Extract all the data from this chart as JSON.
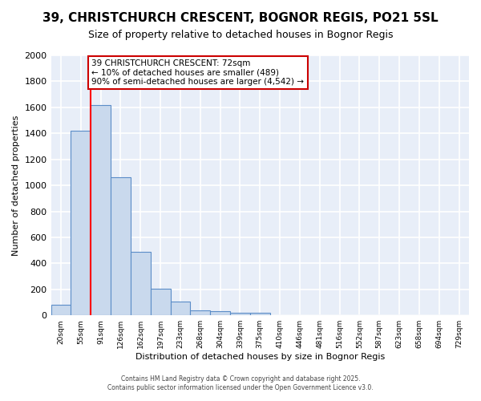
{
  "title_line1": "39, CHRISTCHURCH CRESCENT, BOGNOR REGIS, PO21 5SL",
  "title_line2": "Size of property relative to detached houses in Bognor Regis",
  "xlabel": "Distribution of detached houses by size in Bognor Regis",
  "ylabel": "Number of detached properties",
  "categories": [
    "20sqm",
    "55sqm",
    "91sqm",
    "126sqm",
    "162sqm",
    "197sqm",
    "233sqm",
    "268sqm",
    "304sqm",
    "339sqm",
    "375sqm",
    "410sqm",
    "446sqm",
    "481sqm",
    "516sqm",
    "552sqm",
    "587sqm",
    "623sqm",
    "658sqm",
    "694sqm",
    "729sqm"
  ],
  "values": [
    80,
    1420,
    1620,
    1060,
    490,
    205,
    105,
    40,
    30,
    20,
    20,
    0,
    0,
    0,
    0,
    0,
    0,
    0,
    0,
    0,
    0
  ],
  "bar_color": "#c9d9ed",
  "bar_edge_color": "#5b8dc8",
  "red_line_x": 1.5,
  "annotation_text": "39 CHRISTCHURCH CRESCENT: 72sqm\n← 10% of detached houses are smaller (489)\n90% of semi-detached houses are larger (4,542) →",
  "annotation_box_facecolor": "#ffffff",
  "annotation_box_edgecolor": "#cc0000",
  "footer_line1": "Contains HM Land Registry data © Crown copyright and database right 2025.",
  "footer_line2": "Contains public sector information licensed under the Open Government Licence v3.0.",
  "ylim": [
    0,
    2000
  ],
  "yticks": [
    0,
    200,
    400,
    600,
    800,
    1000,
    1200,
    1400,
    1600,
    1800,
    2000
  ],
  "plot_bg_color": "#e8eef8",
  "fig_bg_color": "#ffffff",
  "grid_color": "#ffffff",
  "title1_fontsize": 11,
  "title2_fontsize": 9,
  "bar_width": 1.0
}
